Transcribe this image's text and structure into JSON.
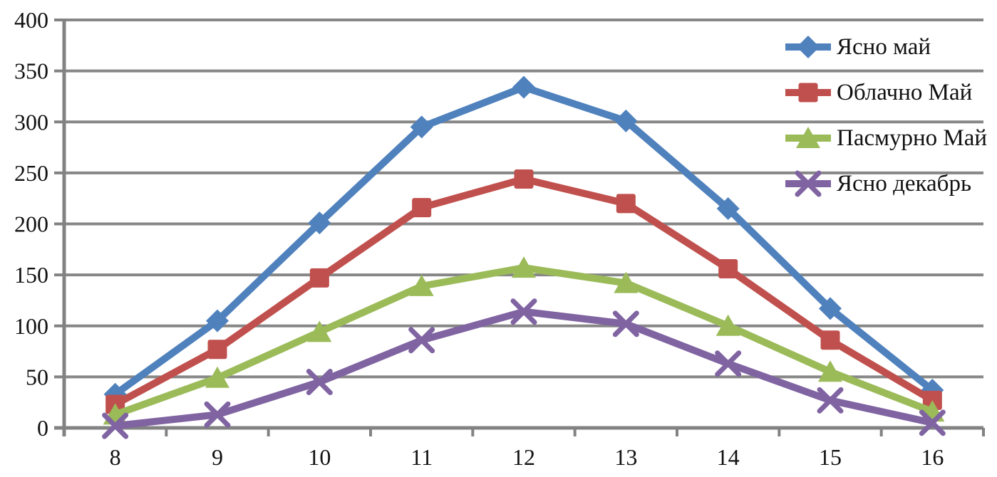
{
  "chart_data": {
    "type": "line",
    "title": "",
    "xlabel": "",
    "ylabel": "",
    "x_categories": [
      "8",
      "9",
      "10",
      "11",
      "12",
      "13",
      "14",
      "15",
      "16"
    ],
    "yticks": [
      "0",
      "50",
      "100",
      "150",
      "200",
      "250",
      "300",
      "350",
      "400"
    ],
    "ylim": [
      0,
      400
    ],
    "ytick_step": 50,
    "grid": true,
    "legend_position": "top-right-overlay-transparent",
    "axis_color": "#828282",
    "grid_color": "#878787",
    "text_color": "#111111",
    "series": [
      {
        "name": "Ясно май",
        "marker": "diamond",
        "color": "#4F81BD",
        "values": [
          33,
          105,
          201,
          295,
          334,
          301,
          215,
          117,
          37
        ]
      },
      {
        "name": "Облачно Май",
        "marker": "square",
        "color": "#C0504D",
        "values": [
          23,
          77,
          147,
          216,
          244,
          220,
          156,
          86,
          27
        ]
      },
      {
        "name": "Пасмурно Май",
        "marker": "triangle",
        "color": "#9BBB59",
        "values": [
          13,
          49,
          94,
          139,
          157,
          142,
          100,
          55,
          16
        ]
      },
      {
        "name": "Ясно декабрь",
        "marker": "x",
        "color": "#8064A2",
        "values": [
          2,
          13,
          45,
          86,
          114,
          102,
          63,
          27,
          5
        ]
      }
    ]
  }
}
